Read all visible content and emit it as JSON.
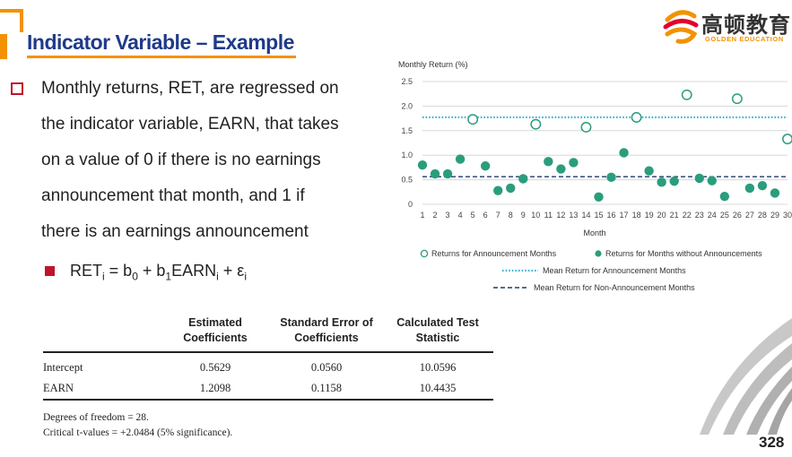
{
  "slide": {
    "title": "Indicator Variable – Example",
    "page_number": "328"
  },
  "logo": {
    "chinese_name": "高顿教育",
    "english_name": "GOLDEN EDUCATION"
  },
  "body": {
    "lines": [
      "Monthly returns, RET, are regressed on",
      "the indicator variable, EARN, that takes",
      "on a value of 0 if there is no earnings",
      "announcement that month, and 1 if",
      "there is an earnings announcement"
    ],
    "formula": {
      "ret": "RET",
      "eq_b0": " = b",
      "plus_b1": " + b",
      "earn": "EARN",
      "plus_eps": " + ε",
      "sub_i": "i",
      "sub_0": "0",
      "sub_1": "1"
    }
  },
  "table": {
    "headers": {
      "col1_line1": "Estimated",
      "col1_line2": "Coefficients",
      "col2_line1": "Standard Error of",
      "col2_line2": "Coefficients",
      "col3_line1": "Calculated Test",
      "col3_line2": "Statistic"
    },
    "rows": [
      {
        "label": "Intercept",
        "coef": "0.5629",
        "se": "0.0560",
        "t": "10.0596"
      },
      {
        "label": "EARN",
        "coef": "1.2098",
        "se": "0.1158",
        "t": "10.4435"
      }
    ]
  },
  "footnotes": {
    "df": "Degrees of freedom = 28.",
    "critical": "Critical t-values = +2.0484 (5% significance)."
  },
  "chart_data": {
    "type": "scatter",
    "title": "",
    "ylabel": "Monthly Return (%)",
    "xlabel": "Month",
    "xlim": [
      1,
      30
    ],
    "ylim": [
      0,
      2.5
    ],
    "yticks": [
      "0",
      "0.5",
      "1.0",
      "1.5",
      "2.0",
      "2.5"
    ],
    "xticks": [
      "1",
      "2",
      "3",
      "4",
      "5",
      "6",
      "7",
      "8",
      "9",
      "10",
      "11",
      "12",
      "13",
      "14",
      "15",
      "16",
      "17",
      "18",
      "19",
      "20",
      "21",
      "22",
      "23",
      "24",
      "25",
      "26",
      "27",
      "28",
      "29",
      "30"
    ],
    "grid": "horizontal",
    "series": [
      {
        "name": "Returns for Announcement Months",
        "marker": "open-circle",
        "color": "#2a9d7c",
        "points": [
          [
            5,
            1.73
          ],
          [
            10,
            1.63
          ],
          [
            14,
            1.57
          ],
          [
            18,
            1.77
          ],
          [
            22,
            2.23
          ],
          [
            26,
            2.15
          ],
          [
            30,
            1.33
          ]
        ]
      },
      {
        "name": "Returns for Months without Announcements",
        "marker": "filled-circle",
        "color": "#2a9d7c",
        "points": [
          [
            1,
            0.8
          ],
          [
            2,
            0.62
          ],
          [
            3,
            0.62
          ],
          [
            4,
            0.92
          ],
          [
            6,
            0.78
          ],
          [
            7,
            0.28
          ],
          [
            8,
            0.33
          ],
          [
            9,
            0.52
          ],
          [
            11,
            0.87
          ],
          [
            12,
            0.72
          ],
          [
            13,
            0.85
          ],
          [
            15,
            0.15
          ],
          [
            16,
            0.55
          ],
          [
            17,
            1.05
          ],
          [
            19,
            0.68
          ],
          [
            20,
            0.45
          ],
          [
            21,
            0.47
          ],
          [
            23,
            0.53
          ],
          [
            24,
            0.48
          ],
          [
            25,
            0.16
          ],
          [
            27,
            0.33
          ],
          [
            28,
            0.38
          ],
          [
            29,
            0.23
          ]
        ]
      }
    ],
    "reference_lines": [
      {
        "name": "Mean Return for Announcement Months",
        "value": 1.7727,
        "style": "dotted",
        "color": "#3bb3d6"
      },
      {
        "name": "Mean Return for Non-Announcement Months",
        "value": 0.5629,
        "style": "dashed",
        "color": "#1f3a6b"
      }
    ]
  },
  "colors": {
    "accent_orange": "#f39200",
    "title_blue": "#1f3a8a",
    "bullet_red": "#c0142b",
    "marker_green": "#2a9d7c"
  }
}
